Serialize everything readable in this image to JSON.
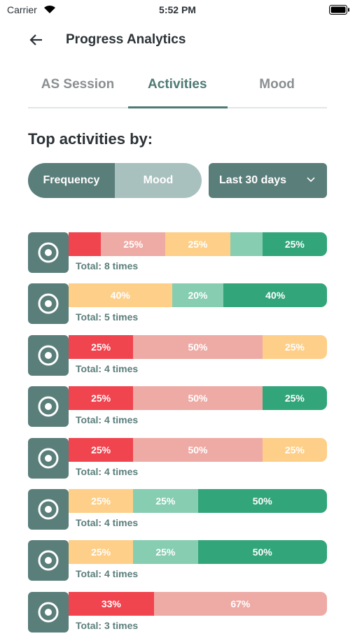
{
  "status_bar": {
    "carrier": "Carrier",
    "time": "5:52 PM"
  },
  "header": {
    "title": "Progress Analytics"
  },
  "tabs": {
    "items": [
      "AS Session",
      "Activities",
      "Mood"
    ],
    "active": 1
  },
  "section_title": "Top activities by:",
  "toggle": {
    "items": [
      "Frequency",
      "Mood"
    ],
    "active": 0
  },
  "dropdown": {
    "label": "Last 30 days"
  },
  "rows": [
    {
      "total": "Total: 8 times",
      "segments": [
        {
          "value": 12.5,
          "color": "#f0444f"
        },
        {
          "value": 25,
          "label": "25%",
          "color": "#eeaaa5"
        },
        {
          "value": 25,
          "label": "25%",
          "color": "#fdcf89"
        },
        {
          "value": 12.5,
          "color": "#86cdb2"
        },
        {
          "value": 25,
          "label": "25%",
          "color": "#33a57b"
        }
      ]
    },
    {
      "total": "Total: 5 times",
      "segments": [
        {
          "value": 40,
          "label": "40%",
          "color": "#fdcf89"
        },
        {
          "value": 20,
          "label": "20%",
          "color": "#86cdb2"
        },
        {
          "value": 40,
          "label": "40%",
          "color": "#33a57b"
        }
      ]
    },
    {
      "total": "Total: 4 times",
      "segments": [
        {
          "value": 25,
          "label": "25%",
          "color": "#f0444f"
        },
        {
          "value": 50,
          "label": "50%",
          "color": "#eeaaa5"
        },
        {
          "value": 25,
          "label": "25%",
          "color": "#fdcf89"
        }
      ]
    },
    {
      "total": "Total: 4 times",
      "segments": [
        {
          "value": 25,
          "label": "25%",
          "color": "#f0444f"
        },
        {
          "value": 50,
          "label": "50%",
          "color": "#eeaaa5"
        },
        {
          "value": 25,
          "label": "25%",
          "color": "#33a57b"
        }
      ]
    },
    {
      "total": "Total: 4 times",
      "segments": [
        {
          "value": 25,
          "label": "25%",
          "color": "#f0444f"
        },
        {
          "value": 50,
          "label": "50%",
          "color": "#eeaaa5"
        },
        {
          "value": 25,
          "label": "25%",
          "color": "#fdcf89"
        }
      ]
    },
    {
      "total": "Total: 4 times",
      "segments": [
        {
          "value": 25,
          "label": "25%",
          "color": "#fdcf89"
        },
        {
          "value": 25,
          "label": "25%",
          "color": "#86cdb2"
        },
        {
          "value": 50,
          "label": "50%",
          "color": "#33a57b"
        }
      ]
    },
    {
      "total": "Total: 4 times",
      "segments": [
        {
          "value": 25,
          "label": "25%",
          "color": "#fdcf89"
        },
        {
          "value": 25,
          "label": "25%",
          "color": "#86cdb2"
        },
        {
          "value": 50,
          "label": "50%",
          "color": "#33a57b"
        }
      ]
    },
    {
      "total": "Total: 3 times",
      "segments": [
        {
          "value": 33,
          "label": "33%",
          "color": "#f0444f"
        },
        {
          "value": 67,
          "label": "67%",
          "color": "#eeaaa5"
        }
      ]
    }
  ]
}
